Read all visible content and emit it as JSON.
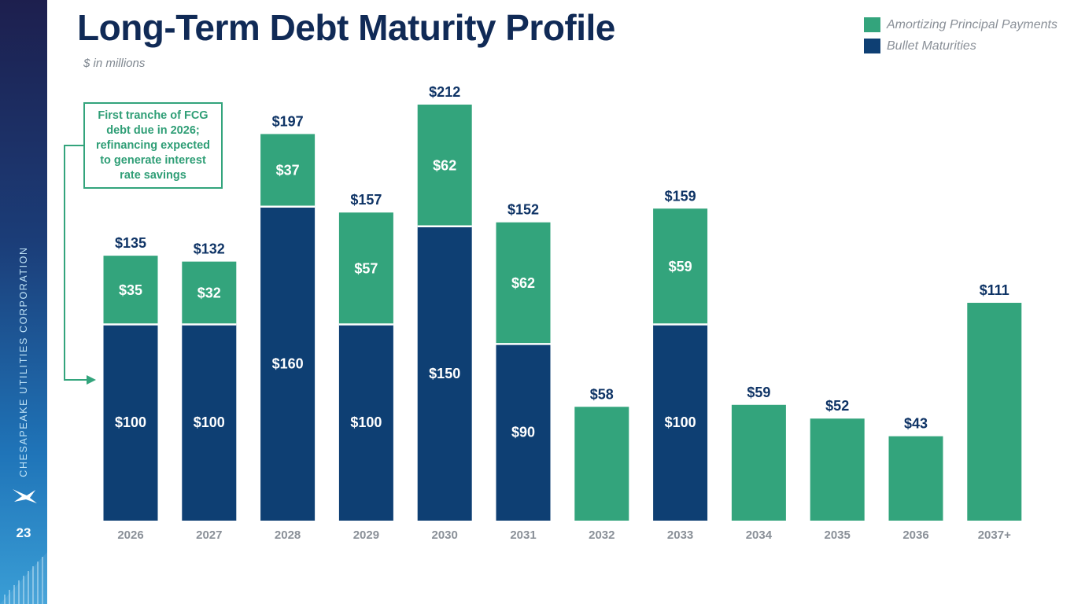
{
  "header": {
    "title": "Long-Term Debt Maturity Profile",
    "subtitle": "$ in millions"
  },
  "sidebar": {
    "company": "CHESAPEAKE UTILITIES CORPORATION",
    "page_number": "23",
    "logo_icon": "bird-logo-icon"
  },
  "legend": {
    "items": [
      {
        "label": "Amortizing Principal Payments",
        "color": "#33a47c"
      },
      {
        "label": "Bullet Maturities",
        "color": "#0e3f73"
      }
    ]
  },
  "callout": {
    "text": "First tranche of FCG debt due in 2026; refinancing expected to generate interest rate savings"
  },
  "chart_data": {
    "type": "bar",
    "stacked": true,
    "categories": [
      "2026",
      "2027",
      "2028",
      "2029",
      "2030",
      "2031",
      "2032",
      "2033",
      "2034",
      "2035",
      "2036",
      "2037+"
    ],
    "series": [
      {
        "name": "Bullet Maturities",
        "color": "#0e3f73",
        "values": [
          100,
          100,
          160,
          100,
          150,
          90,
          0,
          100,
          0,
          0,
          0,
          0
        ],
        "labels": [
          "$100",
          "$100",
          "$160",
          "$100",
          "$150",
          "$90",
          "",
          "$100",
          "",
          "",
          "",
          ""
        ]
      },
      {
        "name": "Amortizing Principal Payments",
        "color": "#33a47c",
        "values": [
          35,
          32,
          37,
          57,
          62,
          62,
          58,
          59,
          59,
          52,
          43,
          111
        ],
        "labels": [
          "$35",
          "$32",
          "$37",
          "$57",
          "$62",
          "$62",
          "",
          "$59",
          "",
          "",
          "",
          ""
        ]
      }
    ],
    "totals": [
      135,
      132,
      197,
      157,
      212,
      152,
      58,
      159,
      59,
      52,
      43,
      111
    ],
    "total_labels": [
      "$135",
      "$132",
      "$197",
      "$157",
      "$212",
      "$152",
      "$58",
      "$159",
      "$59",
      "$52",
      "$43",
      "$111"
    ],
    "ylim": [
      0,
      212
    ],
    "grid": false,
    "legend_position": "top-right",
    "xlabel": "",
    "ylabel": ""
  }
}
